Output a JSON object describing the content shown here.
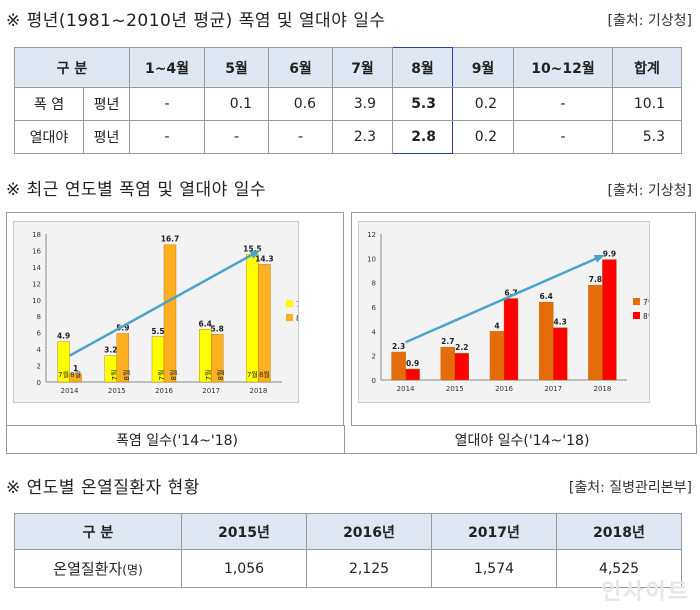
{
  "section1": {
    "title": "※ 평년(1981~2010년 평균) 폭염 및 열대야 일수",
    "source": "[출처: 기상청]",
    "header": [
      "구 분",
      "1~4월",
      "5월",
      "6월",
      "7월",
      "8월",
      "9월",
      "10~12월",
      "합계"
    ],
    "rows": [
      {
        "label": "폭 염",
        "sub": "평년",
        "values": [
          "-",
          "0.1",
          "0.6",
          "3.9",
          "5.3",
          "0.2",
          "-",
          "10.1"
        ]
      },
      {
        "label": "열대야",
        "sub": "평년",
        "values": [
          "-",
          "-",
          "-",
          "2.3",
          "2.8",
          "0.2",
          "-",
          "5.3"
        ]
      }
    ]
  },
  "section2": {
    "title": "※ 최근 연도별 폭염 및 열대야 일수",
    "source": "[출처: 기상청]",
    "captions": [
      "폭염 일수('14~'18)",
      "열대야 일수('14~'18)"
    ]
  },
  "chart_data": [
    {
      "type": "bar",
      "title": "폭염 일수('14~'18)",
      "categories": [
        "2014",
        "2015",
        "2016",
        "2017",
        "2018"
      ],
      "series": [
        {
          "name": "7월",
          "values": [
            4.9,
            3.2,
            5.5,
            6.4,
            15.5
          ],
          "color": "#ffff00"
        },
        {
          "name": "8월",
          "values": [
            1,
            5.9,
            16.7,
            5.8,
            14.3
          ],
          "color": "#ffb020"
        }
      ],
      "in_bar_labels": [
        "7월",
        "8월"
      ],
      "yticks": [
        0,
        2,
        4,
        6,
        8,
        10,
        12,
        14,
        16,
        18
      ],
      "ylim": [
        0,
        18
      ],
      "trend_color": "#4aa3c8"
    },
    {
      "type": "bar",
      "title": "열대야 일수('14~'18)",
      "categories": [
        "2014",
        "2015",
        "2016",
        "2017",
        "2018"
      ],
      "series": [
        {
          "name": "7월",
          "values": [
            2.3,
            2.7,
            4,
            6.4,
            7.8
          ],
          "color": "#e46c0a"
        },
        {
          "name": "8월",
          "values": [
            0.9,
            2.2,
            6.7,
            4.3,
            9.9
          ],
          "color": "#ff0000"
        }
      ],
      "yticks": [
        0,
        2,
        4,
        6,
        8,
        10,
        12
      ],
      "ylim": [
        0,
        12
      ],
      "trend_color": "#4aa3c8"
    }
  ],
  "section3": {
    "title": "※ 연도별 온열질환자 현황",
    "source": "[출처: 질병관리본부]",
    "header": [
      "구 분",
      "2015년",
      "2016년",
      "2017년",
      "2018년"
    ],
    "row": {
      "label": "온열질환자",
      "unit": "(명)",
      "values": [
        "1,056",
        "2,125",
        "1,574",
        "4,525"
      ]
    }
  },
  "watermark": "인사이트"
}
